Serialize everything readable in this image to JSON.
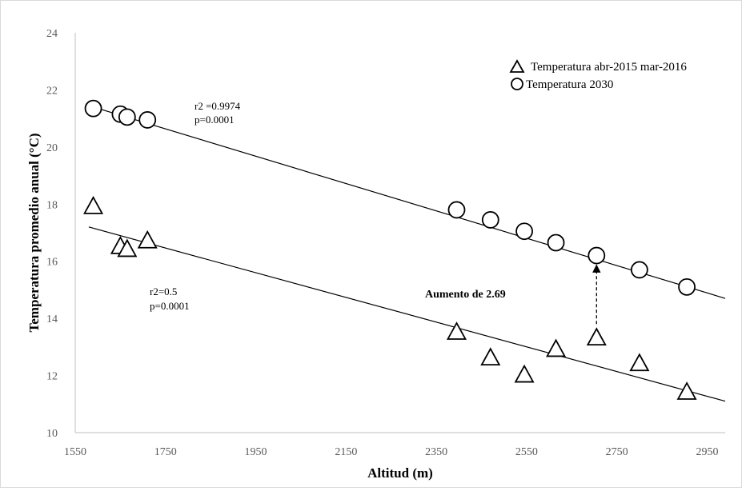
{
  "chart_data": {
    "type": "scatter",
    "xlabel": "Altitud (m)",
    "ylabel": "Temperatura promedio anual (°C)",
    "xlim": [
      1550,
      2990
    ],
    "ylim": [
      10,
      24
    ],
    "x_ticks": [
      "1550",
      "1750",
      "1950",
      "2150",
      "2350",
      "2550",
      "2750",
      "2950"
    ],
    "y_ticks": [
      "10",
      "12",
      "14",
      "16",
      "18",
      "20",
      "22",
      "24"
    ],
    "grid": false,
    "legend_position": "top-right",
    "series": [
      {
        "name": "Temperatura abr-2015 mar-2016",
        "marker": "triangle",
        "points": [
          {
            "x": 1590,
            "y": 17.9
          },
          {
            "x": 1650,
            "y": 16.5
          },
          {
            "x": 1665,
            "y": 16.4
          },
          {
            "x": 1710,
            "y": 16.7
          },
          {
            "x": 2395,
            "y": 13.5
          },
          {
            "x": 2470,
            "y": 12.6
          },
          {
            "x": 2545,
            "y": 12.0
          },
          {
            "x": 2615,
            "y": 12.9
          },
          {
            "x": 2705,
            "y": 13.3
          },
          {
            "x": 2800,
            "y": 12.4
          },
          {
            "x": 2905,
            "y": 11.4
          }
        ],
        "trendline": {
          "x": [
            1580,
            2990
          ],
          "y": [
            17.2,
            11.1
          ]
        }
      },
      {
        "name": "Temperatura 2030",
        "marker": "circle",
        "points": [
          {
            "x": 1590,
            "y": 21.35
          },
          {
            "x": 1650,
            "y": 21.15
          },
          {
            "x": 1665,
            "y": 21.05
          },
          {
            "x": 1710,
            "y": 20.95
          },
          {
            "x": 2395,
            "y": 17.8
          },
          {
            "x": 2470,
            "y": 17.45
          },
          {
            "x": 2545,
            "y": 17.05
          },
          {
            "x": 2615,
            "y": 16.65
          },
          {
            "x": 2705,
            "y": 16.2
          },
          {
            "x": 2800,
            "y": 15.7
          },
          {
            "x": 2905,
            "y": 15.1
          }
        ],
        "trendline": {
          "x": [
            1580,
            2990
          ],
          "y": [
            21.45,
            14.7
          ]
        }
      }
    ],
    "annotations": {
      "r2_2030": "r2 =0.9974",
      "p_2030": "p=0.0001",
      "r2_obs": "r2=0.5",
      "p_obs": "p=0.0001",
      "increase_label": "Aumento  de  2.69",
      "arrow_x": 2705,
      "arrow_from_y": 13.8,
      "arrow_to_y": 15.75
    }
  }
}
